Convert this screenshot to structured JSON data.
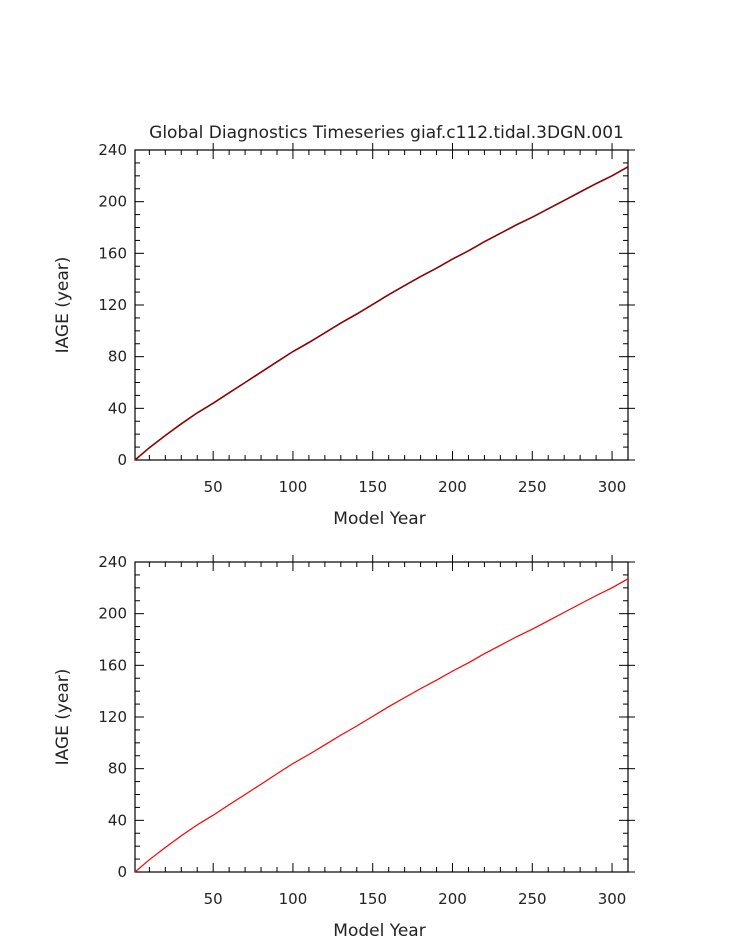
{
  "chart_data": [
    {
      "type": "line",
      "title": "Global Diagnostics Timeseries giaf.c112.tidal.3DGN.001",
      "xlabel": "Model Year",
      "ylabel": "IAGE (year)",
      "xlim": [
        1,
        310
      ],
      "ylim": [
        0,
        240
      ],
      "xticks": [
        50,
        100,
        150,
        200,
        250,
        300
      ],
      "yticks": [
        0,
        40,
        80,
        120,
        160,
        200,
        240
      ],
      "grid": false,
      "series": [
        {
          "color": "#8b0000",
          "x": [
            1,
            10,
            20,
            30,
            40,
            50,
            60,
            70,
            80,
            90,
            100,
            110,
            120,
            130,
            140,
            150,
            160,
            170,
            180,
            190,
            200,
            210,
            220,
            230,
            240,
            250,
            260,
            270,
            280,
            290,
            300,
            310
          ],
          "y": [
            0,
            9.5,
            19,
            28,
            36.5,
            44,
            52,
            60,
            68,
            76,
            84,
            91,
            98.5,
            106,
            113,
            120.5,
            128,
            135,
            142,
            148.5,
            155.5,
            162,
            169,
            175.5,
            182,
            188,
            194.5,
            201,
            207.5,
            214,
            220,
            227
          ]
        }
      ]
    },
    {
      "type": "line",
      "title": "",
      "xlabel": "Model Year",
      "ylabel": "IAGE (year)",
      "xlim": [
        1,
        310
      ],
      "ylim": [
        0,
        240
      ],
      "xticks": [
        50,
        100,
        150,
        200,
        250,
        300
      ],
      "yticks": [
        0,
        40,
        80,
        120,
        160,
        200,
        240
      ],
      "grid": false,
      "series": [
        {
          "color": "#ff0000",
          "x": [
            1,
            10,
            20,
            30,
            40,
            50,
            60,
            70,
            80,
            90,
            100,
            110,
            120,
            130,
            140,
            150,
            160,
            170,
            180,
            190,
            200,
            210,
            220,
            230,
            240,
            250,
            260,
            270,
            280,
            290,
            300,
            310
          ],
          "y": [
            0,
            9.5,
            19,
            28,
            36.5,
            44,
            52,
            60,
            68,
            76,
            84,
            91,
            98.5,
            106,
            113,
            120.5,
            128,
            135,
            142,
            148.5,
            155.5,
            162,
            169,
            175.5,
            182,
            188,
            194.5,
            201,
            207.5,
            214,
            220,
            227
          ]
        }
      ]
    }
  ]
}
